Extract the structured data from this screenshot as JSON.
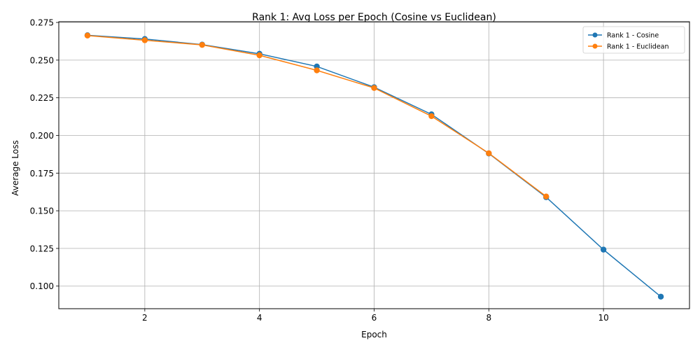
{
  "chart_data": {
    "type": "line",
    "title": "Rank 1: Avg Loss per Epoch (Cosine vs Euclidean)",
    "xlabel": "Epoch",
    "ylabel": "Average Loss",
    "xlim": [
      0.5,
      11.5
    ],
    "ylim": [
      0.085,
      0.2755
    ],
    "xticks": [
      2,
      4,
      6,
      8,
      10
    ],
    "yticks": [
      0.1,
      0.125,
      0.15,
      0.175,
      0.2,
      0.225,
      0.25,
      0.275
    ],
    "grid": true,
    "legend_position": "top-right",
    "series": [
      {
        "name": "Rank 1 - Cosine",
        "color": "#1f77b4",
        "marker": "circle",
        "x": [
          1,
          2,
          3,
          4,
          5,
          6,
          7,
          8,
          9,
          10,
          11
        ],
        "y": [
          0.2665,
          0.264,
          0.2603,
          0.2542,
          0.2458,
          0.232,
          0.214,
          0.188,
          0.159,
          0.1242,
          0.093
        ]
      },
      {
        "name": "Rank 1 - Euclidean",
        "color": "#ff7f0e",
        "marker": "circle",
        "x": [
          1,
          2,
          3,
          4,
          5,
          6,
          7,
          8,
          9
        ],
        "y": [
          0.2663,
          0.2632,
          0.2601,
          0.2532,
          0.2432,
          0.2315,
          0.2128,
          0.1882,
          0.1595
        ]
      }
    ]
  }
}
